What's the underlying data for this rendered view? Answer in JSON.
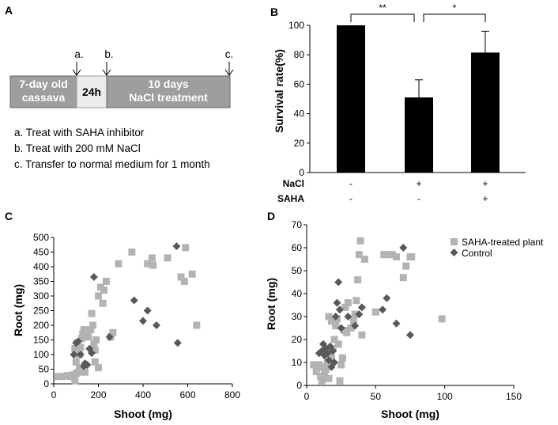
{
  "panels": {
    "a": {
      "letter": "A",
      "timeline": {
        "box1": [
          "7-day old",
          "cassava"
        ],
        "box2": "24h",
        "box3": [
          "10 days",
          "NaCl treatment"
        ],
        "markers": [
          "a.",
          "b.",
          "c."
        ]
      },
      "notes": [
        "a. Treat with SAHA inhibitor",
        "b. Treat with 200 mM NaCl",
        "c. Transfer to normal medium for 1 month"
      ]
    },
    "b": {
      "letter": "B"
    },
    "c": {
      "letter": "C"
    },
    "d": {
      "letter": "D"
    }
  },
  "colors": {
    "bar": "#000000",
    "saha": "#b3b3b3",
    "control": "#595959",
    "timeline_box": "#9e9e9e"
  },
  "chart_data": [
    {
      "id": "B",
      "type": "bar",
      "ylabel": "Survival rate(%)",
      "ylim": [
        0,
        100
      ],
      "yticks": [
        0,
        20,
        40,
        60,
        80,
        100
      ],
      "values": [
        100,
        51,
        81.5
      ],
      "errors": [
        0,
        12,
        14.5
      ],
      "conditions": [
        {
          "label": "NaCl",
          "values": [
            "-",
            "+",
            "+"
          ]
        },
        {
          "label": "SAHA",
          "values": [
            "-",
            "-",
            "+"
          ]
        }
      ],
      "significance": [
        {
          "from": 0,
          "to": 1,
          "label": "**"
        },
        {
          "from": 1,
          "to": 2,
          "label": "*"
        }
      ]
    },
    {
      "id": "C",
      "type": "scatter",
      "xlabel": "Shoot (mg)",
      "ylabel": "Root (mg)",
      "xlim": [
        0,
        800
      ],
      "ylim": [
        0,
        500
      ],
      "xticks": [
        0,
        200,
        400,
        600,
        800
      ],
      "yticks": [
        0,
        50,
        100,
        150,
        200,
        250,
        300,
        350,
        400,
        450,
        500
      ],
      "series": [
        {
          "name": "SAHA-treated plant",
          "marker": "square",
          "points": [
            [
              20,
              25
            ],
            [
              40,
              25
            ],
            [
              60,
              28
            ],
            [
              75,
              25
            ],
            [
              85,
              30
            ],
            [
              95,
              10
            ],
            [
              110,
              40
            ],
            [
              100,
              35
            ],
            [
              115,
              55
            ],
            [
              100,
              75
            ],
            [
              95,
              120
            ],
            [
              105,
              140
            ],
            [
              115,
              100
            ],
            [
              120,
              125
            ],
            [
              125,
              155
            ],
            [
              130,
              170
            ],
            [
              135,
              185
            ],
            [
              145,
              165
            ],
            [
              155,
              160
            ],
            [
              140,
              40
            ],
            [
              165,
              185
            ],
            [
              175,
              200
            ],
            [
              170,
              240
            ],
            [
              180,
              135
            ],
            [
              185,
              115
            ],
            [
              190,
              150
            ],
            [
              200,
              55
            ],
            [
              185,
              75
            ],
            [
              200,
              300
            ],
            [
              210,
              330
            ],
            [
              220,
              275
            ],
            [
              225,
              320
            ],
            [
              235,
              350
            ],
            [
              255,
              160
            ],
            [
              265,
              175
            ],
            [
              290,
              410
            ],
            [
              350,
              450
            ],
            [
              420,
              410
            ],
            [
              440,
              430
            ],
            [
              445,
              405
            ],
            [
              510,
              430
            ],
            [
              590,
              465
            ],
            [
              570,
              365
            ],
            [
              585,
              350
            ],
            [
              620,
              375
            ],
            [
              640,
              200
            ]
          ]
        },
        {
          "name": "Control",
          "marker": "diamond",
          "points": [
            [
              90,
              100
            ],
            [
              100,
              140
            ],
            [
              110,
              145
            ],
            [
              120,
              100
            ],
            [
              135,
              60
            ],
            [
              140,
              70
            ],
            [
              150,
              65
            ],
            [
              160,
              120
            ],
            [
              170,
              105
            ],
            [
              180,
              365
            ],
            [
              250,
              160
            ],
            [
              360,
              285
            ],
            [
              400,
              215
            ],
            [
              420,
              250
            ],
            [
              460,
              200
            ],
            [
              550,
              470
            ],
            [
              555,
              140
            ]
          ]
        }
      ]
    },
    {
      "id": "D",
      "type": "scatter",
      "xlabel": "Shoot (mg)",
      "ylabel": "Root (mg)",
      "xlim": [
        0,
        150
      ],
      "ylim": [
        0,
        70
      ],
      "xticks": [
        0,
        50,
        100,
        150
      ],
      "yticks": [
        0,
        10,
        20,
        30,
        40,
        50,
        60,
        70
      ],
      "legend": {
        "position": "top-right",
        "entries": [
          "SAHA-treated plant",
          "Control"
        ]
      },
      "series": [
        {
          "name": "SAHA-treated plant",
          "marker": "square",
          "points": [
            [
              5,
              9
            ],
            [
              7,
              6
            ],
            [
              9,
              9
            ],
            [
              10,
              4
            ],
            [
              11,
              2
            ],
            [
              12,
              8
            ],
            [
              13,
              5
            ],
            [
              14,
              7
            ],
            [
              15,
              10
            ],
            [
              16,
              3
            ],
            [
              17,
              14
            ],
            [
              18,
              12
            ],
            [
              19,
              16
            ],
            [
              20,
              20
            ],
            [
              21,
              26
            ],
            [
              22,
              29
            ],
            [
              23,
              18
            ],
            [
              24,
              2
            ],
            [
              25,
              9
            ],
            [
              26,
              12
            ],
            [
              27,
              24
            ],
            [
              28,
              34
            ],
            [
              29,
              23
            ],
            [
              30,
              36
            ],
            [
              32,
              25
            ],
            [
              34,
              28
            ],
            [
              35,
              31
            ],
            [
              36,
              37
            ],
            [
              37,
              46
            ],
            [
              38,
              57
            ],
            [
              39,
              63
            ],
            [
              40,
              22
            ],
            [
              42,
              55
            ],
            [
              50,
              32
            ],
            [
              56,
              57
            ],
            [
              58,
              57
            ],
            [
              62,
              57
            ],
            [
              65,
              56
            ],
            [
              70,
              47
            ],
            [
              72,
              52
            ],
            [
              75,
              56
            ],
            [
              76,
              56
            ],
            [
              98,
              29
            ],
            [
              16,
              30
            ],
            [
              18,
              28
            ]
          ]
        },
        {
          "name": "Control",
          "marker": "diamond",
          "points": [
            [
              9,
              14
            ],
            [
              11,
              15
            ],
            [
              12,
              18
            ],
            [
              13,
              13
            ],
            [
              14,
              16
            ],
            [
              15,
              14
            ],
            [
              16,
              11
            ],
            [
              17,
              17
            ],
            [
              18,
              8
            ],
            [
              19,
              15
            ],
            [
              20,
              10
            ],
            [
              21,
              30
            ],
            [
              22,
              36
            ],
            [
              23,
              45
            ],
            [
              24,
              33
            ],
            [
              25,
              25
            ],
            [
              30,
              30
            ],
            [
              35,
              26
            ],
            [
              38,
              31
            ],
            [
              40,
              34
            ],
            [
              55,
              33
            ],
            [
              58,
              38
            ],
            [
              65,
              27
            ],
            [
              70,
              60
            ],
            [
              75,
              22
            ]
          ]
        }
      ]
    }
  ]
}
